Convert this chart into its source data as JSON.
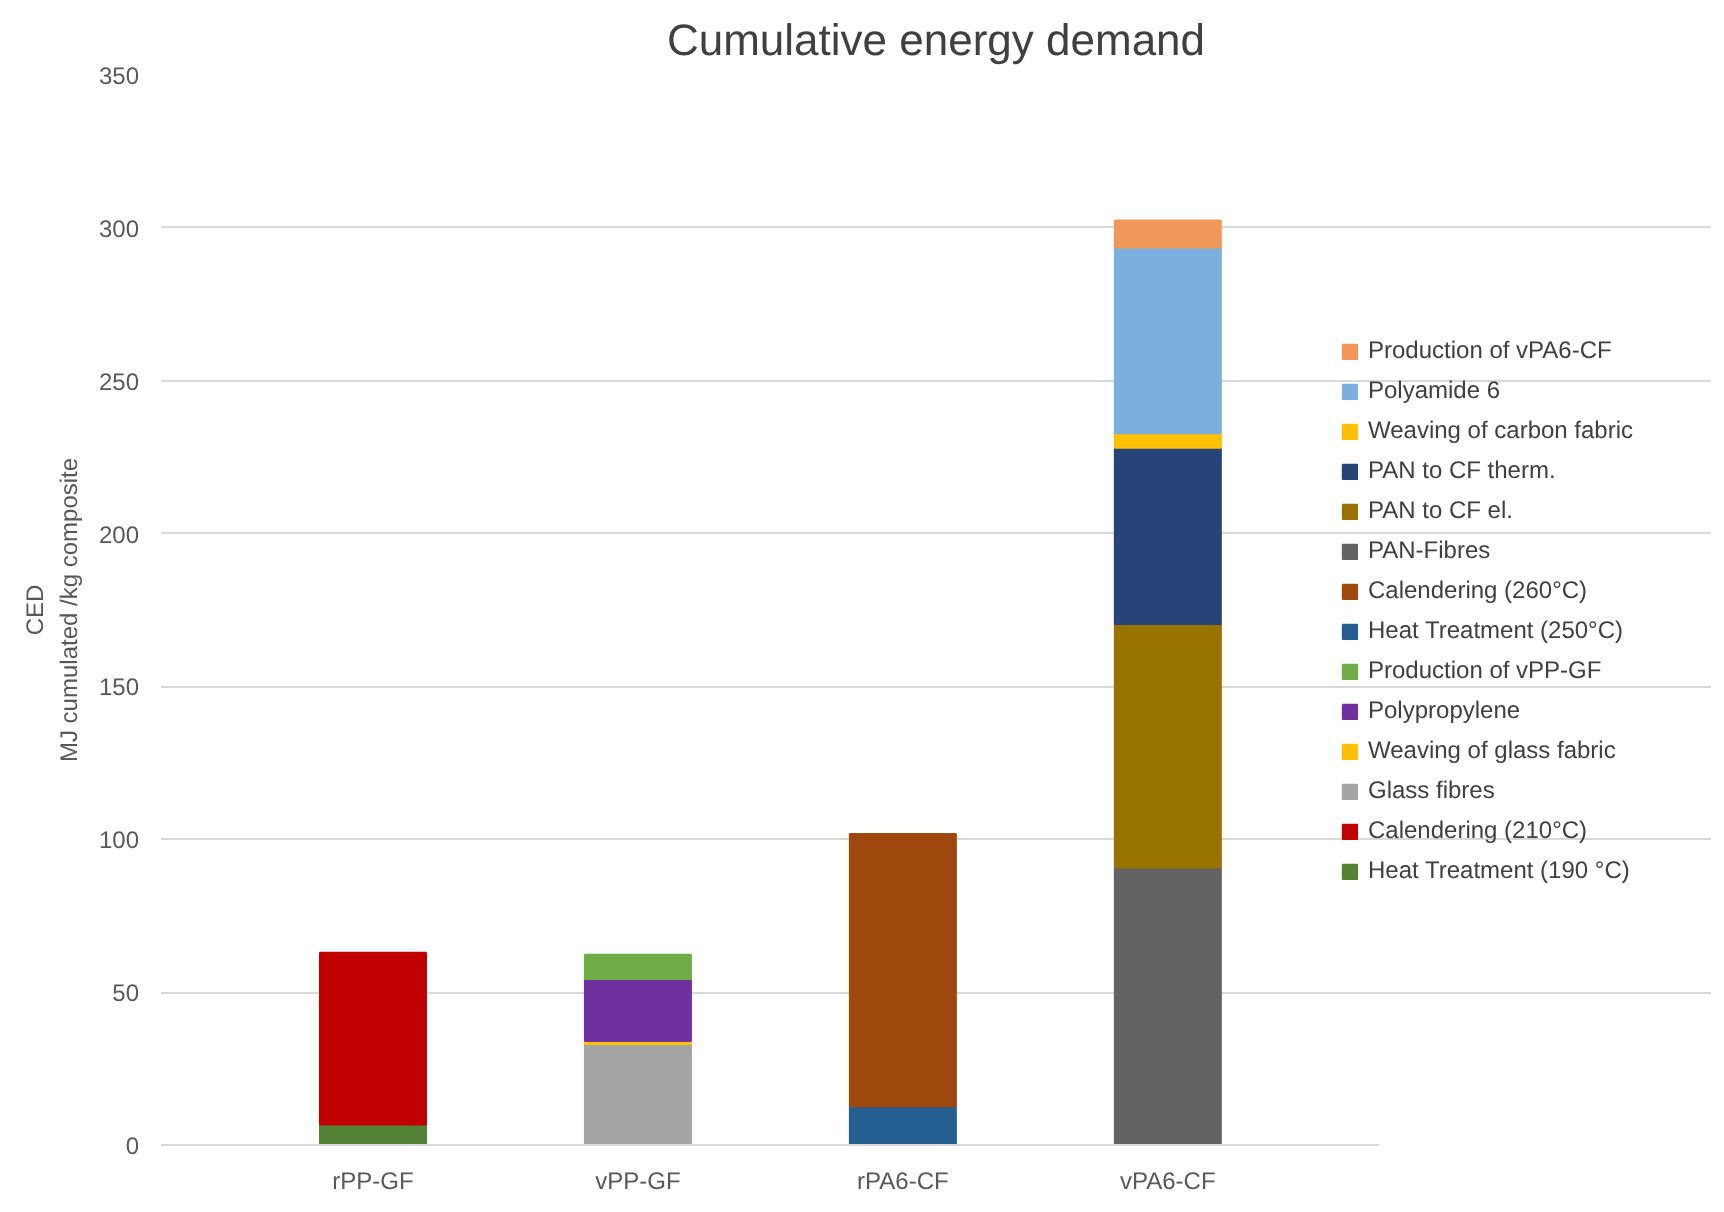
{
  "chart_data": {
    "type": "bar",
    "stacked": true,
    "title": "Cumulative energy demand",
    "ylabel": "CED\nMJ cumulated /kg composite",
    "categories": [
      "rPP-GF",
      "vPP-GF",
      "rPA6-CF",
      "vPA6-CF"
    ],
    "ylim": [
      0,
      350
    ],
    "yticks": [
      0,
      50,
      100,
      150,
      200,
      250,
      300,
      350
    ],
    "grid": "y",
    "legend": "right",
    "series": [
      {
        "name": "Heat Treatment (190 °C)",
        "color": "#548235",
        "values": [
          6.7,
          null,
          null,
          null
        ]
      },
      {
        "name": "Calendering (210°C)",
        "color": "#c00000",
        "values": [
          56.2,
          null,
          null,
          null
        ]
      },
      {
        "name": "Glass fibres",
        "color": "#a5a5a5",
        "values": [
          null,
          33,
          null,
          null
        ]
      },
      {
        "name": "Weaving of glass fabric",
        "color": "#ffc000",
        "values": [
          null,
          1,
          null,
          null
        ]
      },
      {
        "name": "Polypropylene",
        "color": "#7030a0",
        "values": [
          null,
          20.3,
          null,
          null
        ]
      },
      {
        "name": "Production of vPP-GF",
        "color": "#70ad47",
        "values": [
          null,
          7.9,
          null,
          null
        ]
      },
      {
        "name": "Heat Treatment (250°C)",
        "color": "#255e91",
        "values": [
          null,
          null,
          12.7,
          null
        ]
      },
      {
        "name": "Calendering (260°C)",
        "color": "#9e480e",
        "values": [
          null,
          null,
          89,
          null
        ]
      },
      {
        "name": "PAN-Fibres",
        "color": "#636363",
        "values": [
          null,
          null,
          null,
          90.8
        ]
      },
      {
        "name": "PAN to CF el.",
        "color": "#997300",
        "values": [
          null,
          null,
          null,
          79.6
        ]
      },
      {
        "name": "PAN to CF therm.",
        "color": "#264478",
        "values": [
          null,
          null,
          null,
          57.7
        ]
      },
      {
        "name": "Weaving of carbon fabric",
        "color": "#ffc000",
        "values": [
          null,
          null,
          null,
          4.7
        ]
      },
      {
        "name": "Polyamide 6",
        "color": "#7cafdd",
        "values": [
          null,
          null,
          null,
          60.8
        ]
      },
      {
        "name": "Production of vPA6-CF",
        "color": "#f1975a",
        "values": [
          null,
          null,
          null,
          8.8
        ]
      }
    ]
  }
}
